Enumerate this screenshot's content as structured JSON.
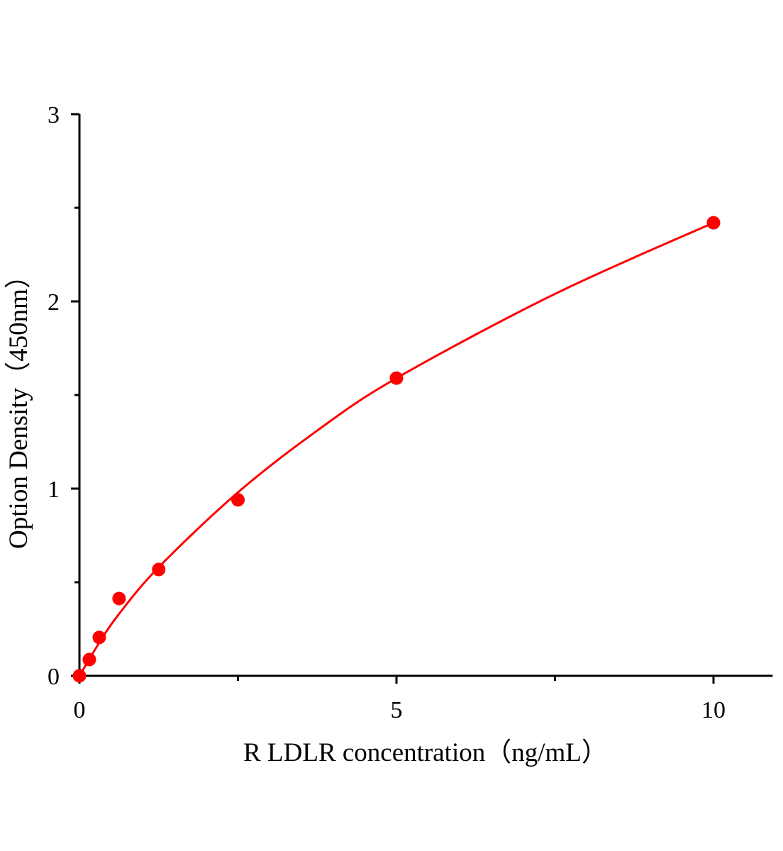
{
  "chart_data": {
    "type": "scatter",
    "title": "",
    "xlabel": "R LDLR  concentration（ng/mL）",
    "ylabel": "Option Density（450nm）",
    "xlim": [
      0,
      11
    ],
    "ylim": [
      0,
      3
    ],
    "x_ticks": [
      0,
      5,
      10
    ],
    "x_tick_labels": [
      "0",
      "5",
      "10"
    ],
    "x_minor_ticks": [
      2.5,
      7.5
    ],
    "y_ticks": [
      0,
      1,
      2,
      3
    ],
    "y_tick_labels": [
      "0",
      "1",
      "2",
      "3"
    ],
    "y_minor_ticks": [
      0.5,
      1.5,
      2.5
    ],
    "grid": false,
    "color": "#ff0000",
    "points": {
      "x": [
        0,
        0.156,
        0.3125,
        0.625,
        1.25,
        2.5,
        5,
        10
      ],
      "y": [
        0.0,
        0.087,
        0.205,
        0.413,
        0.568,
        0.94,
        1.59,
        2.42
      ]
    },
    "fit_curve": {
      "x": [
        0,
        0.3,
        0.6,
        1.25,
        2.5,
        3.75,
        5,
        7.5,
        10
      ],
      "y": [
        0,
        0.17,
        0.32,
        0.58,
        0.98,
        1.31,
        1.59,
        2.04,
        2.42
      ]
    }
  }
}
